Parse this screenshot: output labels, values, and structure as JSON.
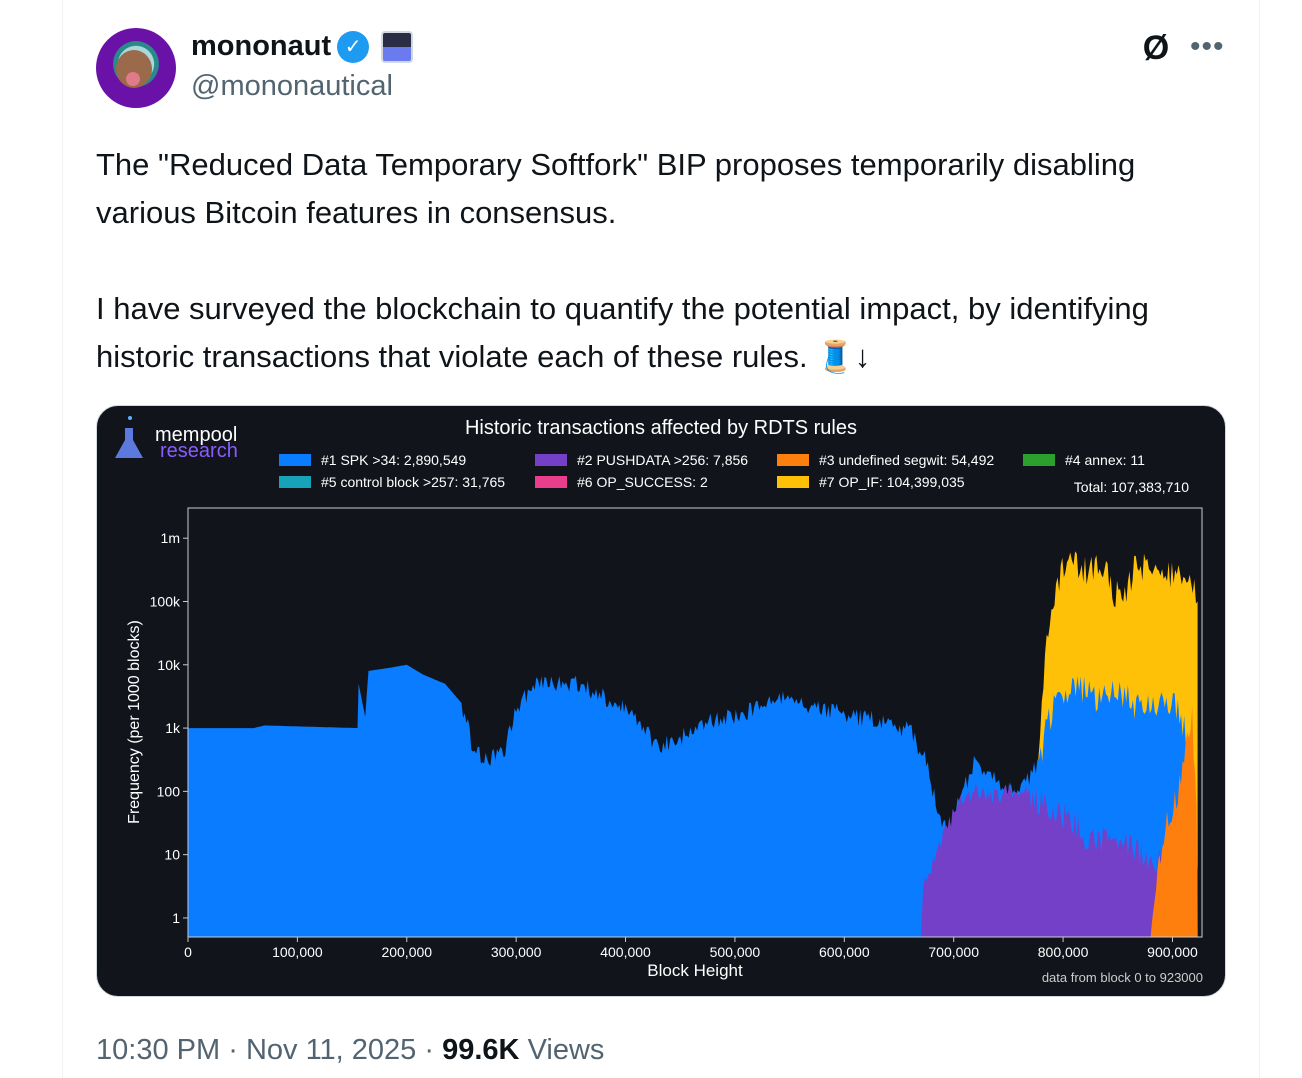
{
  "tweet": {
    "author_name": "mononaut",
    "handle": "@mononautical",
    "verified": true,
    "icons": {
      "verified": "verified-badge-icon",
      "affiliate": "affiliate-flag-icon",
      "grok": "grok-icon",
      "more": "more-icon"
    },
    "text_p1": "The \"Reduced Data Temporary Softfork\" BIP proposes temporarily disabling various Bitcoin features in consensus.",
    "text_p2": "I have surveyed the blockchain to quantify the potential impact, by identifying historic transactions that violate each of these rules. 🧵↓",
    "time": "10:30 PM",
    "date": "Nov 11, 2025",
    "views_count": "99.6K",
    "views_label": "Views",
    "separator": "·"
  },
  "chart_data": {
    "type": "area",
    "title": "Historic transactions affected by RDTS rules",
    "logo_line1": "mempool",
    "logo_line2": "research",
    "xlabel": "Block Height",
    "ylabel": "Frequency (per 1000 blocks)",
    "yscale": "log",
    "ylim": [
      0.5,
      3000000
    ],
    "xlim": [
      0,
      927000
    ],
    "x_ticks": [
      "0",
      "100,000",
      "200,000",
      "300,000",
      "400,000",
      "500,000",
      "600,000",
      "700,000",
      "800,000",
      "900,000"
    ],
    "x_tick_values": [
      0,
      100000,
      200000,
      300000,
      400000,
      500000,
      600000,
      700000,
      800000,
      900000
    ],
    "y_ticks": [
      "1",
      "10",
      "100",
      "1k",
      "10k",
      "100k",
      "1m"
    ],
    "y_tick_values": [
      1,
      10,
      100,
      1000,
      10000,
      100000,
      1000000
    ],
    "footnote": "data from block 0 to 923000",
    "total": "Total: 107,383,710",
    "legend": [
      {
        "label": "#1 SPK >34: 2,890,549",
        "color": "#0a7cff"
      },
      {
        "label": "#2 PUSHDATA >256: 7,856",
        "color": "#7440c8"
      },
      {
        "label": "#3 undefined segwit: 54,492",
        "color": "#ff7f0e"
      },
      {
        "label": "#4 annex: 11",
        "color": "#2ca02c"
      },
      {
        "label": "#5 control block >257: 31,765",
        "color": "#17a2b8"
      },
      {
        "label": "#6 OP_SUCCESS: 2",
        "color": "#e83e8c"
      },
      {
        "label": "#7 OP_IF: 104,399,035",
        "color": "#ffc107"
      }
    ],
    "series": [
      {
        "name": "#7 OP_IF",
        "color": "#ffc107",
        "points": [
          [
            774000,
            0.5
          ],
          [
            776000,
            100
          ],
          [
            785000,
            30000
          ],
          [
            795000,
            200000
          ],
          [
            805000,
            500000
          ],
          [
            820000,
            300000
          ],
          [
            835000,
            400000
          ],
          [
            845000,
            150000
          ],
          [
            855000,
            100000
          ],
          [
            865000,
            300000
          ],
          [
            880000,
            400000
          ],
          [
            895000,
            250000
          ],
          [
            910000,
            300000
          ],
          [
            920000,
            200000
          ],
          [
            923000,
            100000
          ]
        ]
      },
      {
        "name": "#1 SPK >34",
        "color": "#0a7cff",
        "points": [
          [
            0,
            1000
          ],
          [
            60000,
            1000
          ],
          [
            70000,
            1100
          ],
          [
            155000,
            1000
          ],
          [
            156000,
            5000
          ],
          [
            162000,
            1500
          ],
          [
            165000,
            8000
          ],
          [
            185000,
            9000
          ],
          [
            200000,
            10000
          ],
          [
            215000,
            7000
          ],
          [
            235000,
            5000
          ],
          [
            250000,
            2500
          ],
          [
            262000,
            400
          ],
          [
            275000,
            300
          ],
          [
            290000,
            500
          ],
          [
            300000,
            2000
          ],
          [
            320000,
            5000
          ],
          [
            350000,
            5000
          ],
          [
            370000,
            4000
          ],
          [
            390000,
            2500
          ],
          [
            400000,
            2000
          ],
          [
            415000,
            1000
          ],
          [
            430000,
            500
          ],
          [
            450000,
            700
          ],
          [
            470000,
            1200
          ],
          [
            490000,
            1500
          ],
          [
            510000,
            1800
          ],
          [
            530000,
            2500
          ],
          [
            550000,
            3000
          ],
          [
            570000,
            2000
          ],
          [
            590000,
            1800
          ],
          [
            610000,
            1500
          ],
          [
            640000,
            1200
          ],
          [
            660000,
            900
          ],
          [
            675000,
            300
          ],
          [
            685000,
            50
          ],
          [
            695000,
            20
          ],
          [
            705000,
            80
          ],
          [
            720000,
            300
          ],
          [
            740000,
            150
          ],
          [
            760000,
            100
          ],
          [
            775000,
            200
          ],
          [
            790000,
            2000
          ],
          [
            810000,
            5000
          ],
          [
            830000,
            3000
          ],
          [
            850000,
            4000
          ],
          [
            870000,
            2000
          ],
          [
            890000,
            3000
          ],
          [
            905000,
            2000
          ],
          [
            915000,
            500
          ],
          [
            923000,
            5
          ]
        ]
      },
      {
        "name": "#2 PUSHDATA >256",
        "color": "#7440c8",
        "points": [
          [
            670000,
            0.5
          ],
          [
            672000,
            3
          ],
          [
            690000,
            20
          ],
          [
            705000,
            60
          ],
          [
            720000,
            100
          ],
          [
            740000,
            80
          ],
          [
            760000,
            120
          ],
          [
            780000,
            60
          ],
          [
            800000,
            40
          ],
          [
            820000,
            20
          ],
          [
            850000,
            15
          ],
          [
            870000,
            10
          ],
          [
            900000,
            8
          ],
          [
            920000,
            1
          ],
          [
            923000,
            0.5
          ]
        ]
      },
      {
        "name": "#3 undefined segwit",
        "color": "#ff7f0e",
        "points": [
          [
            880000,
            0.5
          ],
          [
            885000,
            3
          ],
          [
            895000,
            30
          ],
          [
            905000,
            100
          ],
          [
            912000,
            500
          ],
          [
            918000,
            2000
          ],
          [
            922000,
            50
          ],
          [
            923000,
            0.5
          ]
        ]
      }
    ]
  }
}
